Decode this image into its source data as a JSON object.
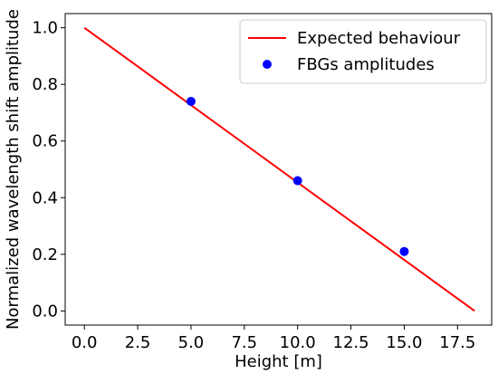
{
  "chart_data": {
    "type": "scatter",
    "title": "",
    "xlabel": "Height [m]",
    "ylabel": "Normalized wavelength shift amplitude",
    "xlim": [
      -0.9,
      19.1
    ],
    "ylim": [
      -0.05,
      1.05
    ],
    "xticks": [
      0.0,
      2.5,
      5.0,
      7.5,
      10.0,
      12.5,
      15.0,
      17.5
    ],
    "xtick_labels": [
      "0.0",
      "2.5",
      "5.0",
      "7.5",
      "10.0",
      "12.5",
      "15.0",
      "17.5"
    ],
    "yticks": [
      0.0,
      0.2,
      0.4,
      0.6,
      0.8,
      1.0
    ],
    "ytick_labels": [
      "0.0",
      "0.2",
      "0.4",
      "0.6",
      "0.8",
      "1.0"
    ],
    "grid": false,
    "legend_position": "top-right",
    "series": [
      {
        "name": "Expected behaviour",
        "kind": "line",
        "color": "#ff0000",
        "x": [
          0.0,
          18.3
        ],
        "y": [
          1.0,
          0.0
        ]
      },
      {
        "name": "FBGs amplitudes",
        "kind": "scatter",
        "color": "#0000ff",
        "x": [
          5.0,
          10.0,
          15.0
        ],
        "y": [
          0.74,
          0.46,
          0.21
        ]
      }
    ]
  }
}
